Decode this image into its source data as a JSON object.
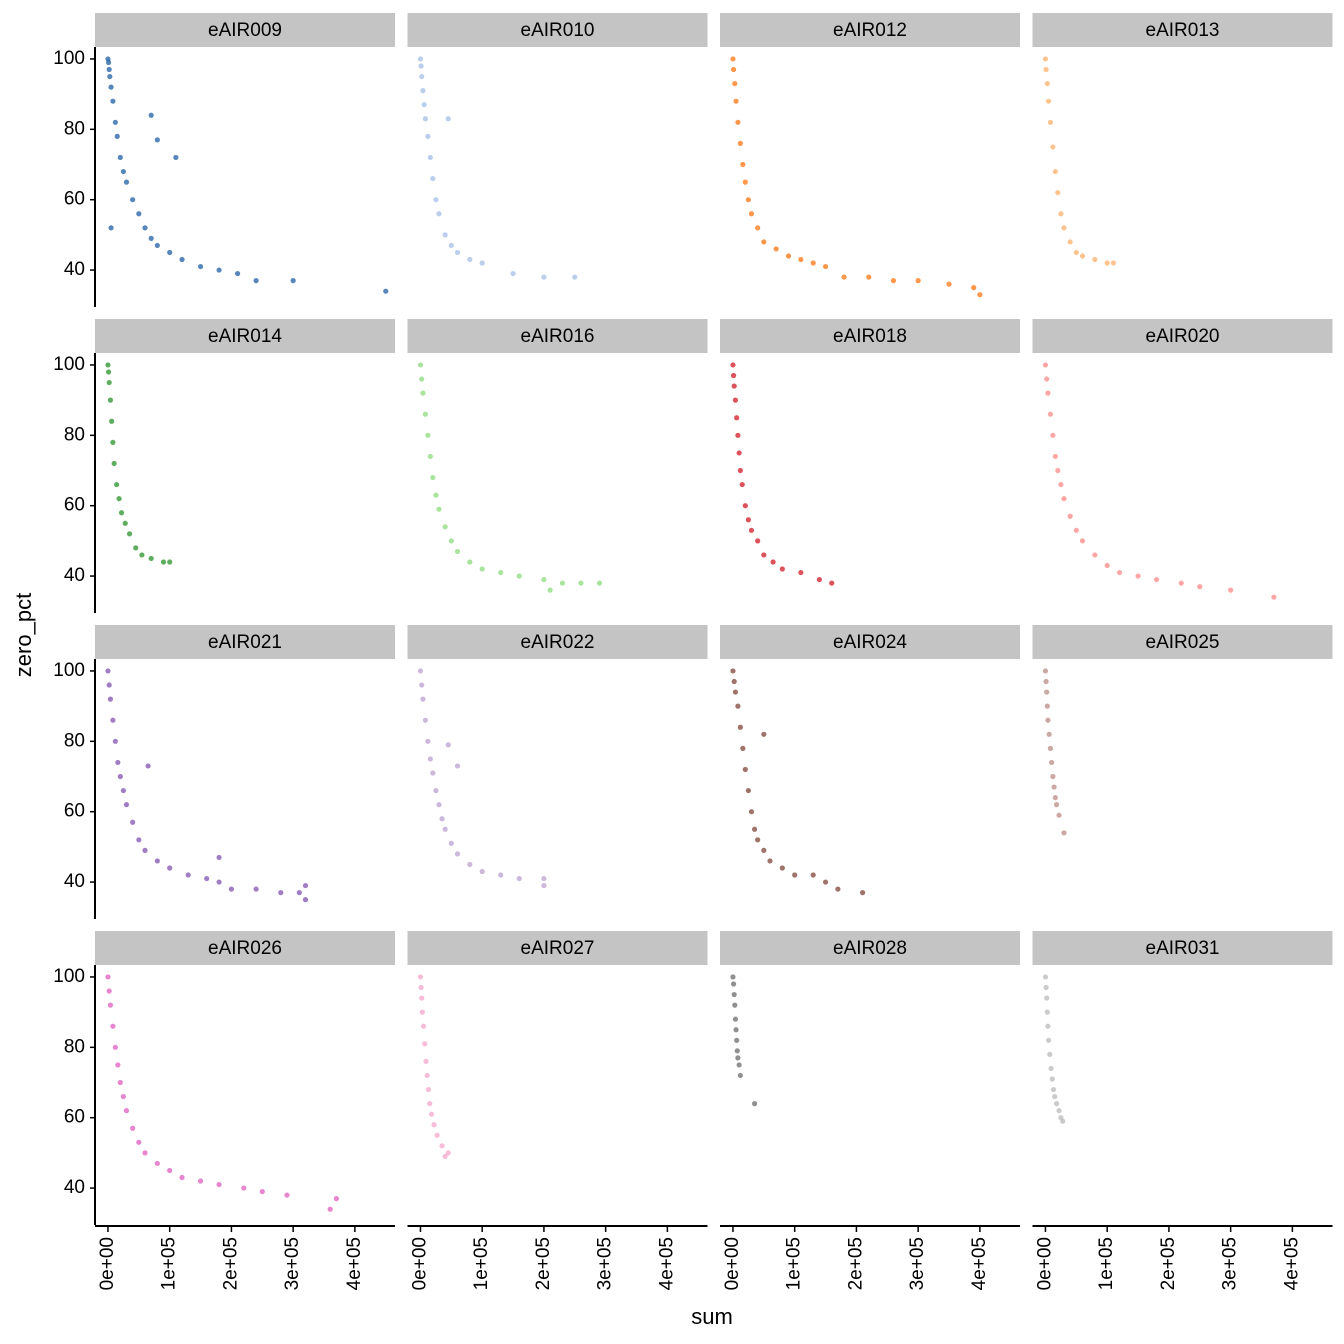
{
  "chart_data": {
    "type": "scatter",
    "x_label": "sum",
    "y_label": "zero_pct",
    "xlim": [
      -21000,
      465000
    ],
    "ylim": [
      29.5,
      103.4
    ],
    "xticks": [
      {
        "value": 0,
        "label": "0e+00"
      },
      {
        "value": 100000,
        "label": "1e+05"
      },
      {
        "value": 200000,
        "label": "2e+05"
      },
      {
        "value": 300000,
        "label": "3e+05"
      },
      {
        "value": 400000,
        "label": "4e+05"
      }
    ],
    "yticks": [
      40,
      60,
      80,
      100
    ],
    "series": [
      {
        "name": "eAIR009",
        "color": "#1f5fa3",
        "x": [
          0,
          1000,
          2000,
          3000,
          5000,
          8000,
          12000,
          15000,
          20000,
          25000,
          30000,
          40000,
          50000,
          60000,
          70000,
          80000,
          100000,
          120000,
          150000,
          180000,
          210000,
          240000,
          300000,
          450000,
          70000,
          80000,
          110000,
          5000
        ],
        "values": [
          100,
          99,
          97,
          95,
          92,
          88,
          82,
          78,
          72,
          68,
          65,
          60,
          56,
          52,
          49,
          47,
          45,
          43,
          41,
          40,
          39,
          37,
          37,
          34,
          84,
          77,
          72,
          52
        ]
      },
      {
        "name": "eAIR010",
        "color": "#a4bfe6",
        "x": [
          0,
          1000,
          2000,
          4000,
          6000,
          8000,
          12000,
          16000,
          20000,
          25000,
          30000,
          40000,
          50000,
          60000,
          80000,
          100000,
          150000,
          200000,
          250000,
          45000
        ],
        "values": [
          100,
          98,
          95,
          91,
          87,
          83,
          78,
          72,
          66,
          60,
          56,
          50,
          47,
          45,
          43,
          42,
          39,
          38,
          38,
          83
        ]
      },
      {
        "name": "eAIR012",
        "color": "#ff7412",
        "x": [
          0,
          1000,
          3000,
          5000,
          8000,
          12000,
          16000,
          20000,
          25000,
          30000,
          40000,
          50000,
          70000,
          90000,
          110000,
          130000,
          150000,
          180000,
          220000,
          260000,
          300000,
          350000,
          390000,
          400000
        ],
        "values": [
          100,
          97,
          93,
          88,
          82,
          76,
          70,
          65,
          60,
          56,
          52,
          48,
          46,
          44,
          43,
          42,
          41,
          38,
          38,
          37,
          37,
          36,
          35,
          33
        ]
      },
      {
        "name": "eAIR013",
        "color": "#ffb06b",
        "x": [
          0,
          1000,
          3000,
          5000,
          8000,
          12000,
          16000,
          20000,
          25000,
          30000,
          40000,
          50000,
          60000,
          80000,
          100000,
          110000
        ],
        "values": [
          100,
          97,
          93,
          88,
          82,
          75,
          68,
          62,
          56,
          52,
          48,
          45,
          44,
          43,
          42,
          42
        ]
      },
      {
        "name": "eAIR014",
        "color": "#2a9128",
        "x": [
          0,
          1000,
          2000,
          4000,
          6000,
          8000,
          10000,
          14000,
          18000,
          22000,
          28000,
          35000,
          45000,
          55000,
          70000,
          90000,
          100000
        ],
        "values": [
          100,
          98,
          95,
          90,
          84,
          78,
          72,
          66,
          62,
          58,
          55,
          52,
          48,
          46,
          45,
          44,
          44
        ]
      },
      {
        "name": "eAIR016",
        "color": "#8cdb7c",
        "x": [
          0,
          2000,
          4000,
          8000,
          12000,
          16000,
          20000,
          25000,
          30000,
          40000,
          50000,
          60000,
          80000,
          100000,
          130000,
          160000,
          200000,
          230000,
          260000,
          290000,
          210000
        ],
        "values": [
          100,
          96,
          92,
          86,
          80,
          74,
          68,
          63,
          59,
          54,
          50,
          47,
          44,
          42,
          41,
          40,
          39,
          38,
          38,
          38,
          36
        ]
      },
      {
        "name": "eAIR018",
        "color": "#d11a26",
        "x": [
          0,
          1000,
          2000,
          4000,
          6000,
          8000,
          10000,
          12000,
          15000,
          20000,
          25000,
          30000,
          40000,
          50000,
          65000,
          80000,
          110000,
          140000,
          160000
        ],
        "values": [
          100,
          97,
          94,
          90,
          85,
          80,
          75,
          70,
          66,
          60,
          56,
          53,
          50,
          46,
          44,
          42,
          41,
          39,
          38
        ]
      },
      {
        "name": "eAIR020",
        "color": "#ff8a88",
        "x": [
          0,
          2000,
          4000,
          8000,
          12000,
          16000,
          20000,
          25000,
          30000,
          40000,
          50000,
          60000,
          80000,
          100000,
          120000,
          150000,
          180000,
          220000,
          250000,
          300000,
          370000
        ],
        "values": [
          100,
          96,
          92,
          86,
          80,
          74,
          70,
          66,
          62,
          57,
          53,
          50,
          46,
          43,
          41,
          40,
          39,
          38,
          37,
          36,
          34
        ]
      },
      {
        "name": "eAIR021",
        "color": "#8252b0",
        "x": [
          0,
          2000,
          4000,
          8000,
          12000,
          16000,
          20000,
          25000,
          30000,
          40000,
          50000,
          60000,
          80000,
          100000,
          130000,
          160000,
          180000,
          200000,
          240000,
          280000,
          310000,
          320000,
          320000,
          180000,
          65000
        ],
        "values": [
          100,
          96,
          92,
          86,
          80,
          74,
          70,
          66,
          62,
          57,
          52,
          49,
          46,
          44,
          42,
          41,
          40,
          38,
          38,
          37,
          37,
          35,
          39,
          47,
          73
        ]
      },
      {
        "name": "eAIR022",
        "color": "#b9a0cf",
        "x": [
          0,
          2000,
          4000,
          8000,
          12000,
          16000,
          20000,
          25000,
          30000,
          35000,
          40000,
          50000,
          60000,
          80000,
          100000,
          130000,
          160000,
          200000,
          200000,
          60000,
          45000
        ],
        "values": [
          100,
          96,
          92,
          86,
          80,
          75,
          71,
          66,
          62,
          58,
          55,
          51,
          48,
          45,
          43,
          42,
          41,
          41,
          39,
          73,
          79
        ]
      },
      {
        "name": "eAIR024",
        "color": "#7f4338",
        "x": [
          0,
          2000,
          4000,
          8000,
          12000,
          16000,
          20000,
          25000,
          30000,
          35000,
          40000,
          50000,
          60000,
          80000,
          100000,
          130000,
          150000,
          170000,
          210000,
          50000
        ],
        "values": [
          100,
          97,
          94,
          90,
          84,
          78,
          72,
          66,
          60,
          55,
          52,
          49,
          46,
          44,
          42,
          42,
          40,
          38,
          37,
          82
        ]
      },
      {
        "name": "eAIR025",
        "color": "#b88b84",
        "x": [
          0,
          1000,
          2000,
          3000,
          4000,
          6000,
          8000,
          10000,
          12000,
          14000,
          16000,
          18000,
          22000,
          30000
        ],
        "values": [
          100,
          97,
          94,
          90,
          86,
          82,
          78,
          74,
          70,
          67,
          64,
          62,
          59,
          54
        ]
      },
      {
        "name": "eAIR026",
        "color": "#df5cbd",
        "x": [
          0,
          2000,
          4000,
          8000,
          12000,
          16000,
          20000,
          25000,
          30000,
          40000,
          50000,
          60000,
          80000,
          100000,
          120000,
          150000,
          180000,
          220000,
          250000,
          290000,
          360000,
          370000
        ],
        "values": [
          100,
          96,
          92,
          86,
          80,
          75,
          70,
          66,
          62,
          57,
          53,
          50,
          47,
          45,
          43,
          42,
          41,
          40,
          39,
          38,
          34,
          37
        ]
      },
      {
        "name": "eAIR027",
        "color": "#f4a6cb",
        "x": [
          0,
          1000,
          2000,
          3000,
          5000,
          7000,
          9000,
          11000,
          13000,
          15000,
          18000,
          22000,
          27000,
          35000,
          45000,
          40000
        ],
        "values": [
          100,
          97,
          94,
          90,
          86,
          81,
          76,
          72,
          68,
          64,
          61,
          58,
          55,
          52,
          50,
          49
        ]
      },
      {
        "name": "eAIR028",
        "color": "#6b6b6b",
        "x": [
          0,
          1000,
          2000,
          3000,
          4000,
          5000,
          6000,
          7000,
          8000,
          10000,
          12000,
          35000
        ],
        "values": [
          100,
          98,
          95,
          92,
          88,
          85,
          82,
          79,
          77,
          75,
          72,
          64
        ]
      },
      {
        "name": "eAIR031",
        "color": "#b9b9b9",
        "x": [
          0,
          1000,
          2000,
          3000,
          4000,
          5000,
          7000,
          9000,
          11000,
          13000,
          15000,
          18000,
          22000,
          25000,
          28000
        ],
        "values": [
          100,
          97,
          94,
          90,
          86,
          82,
          78,
          74,
          71,
          68,
          66,
          64,
          62,
          60,
          59
        ]
      }
    ]
  }
}
